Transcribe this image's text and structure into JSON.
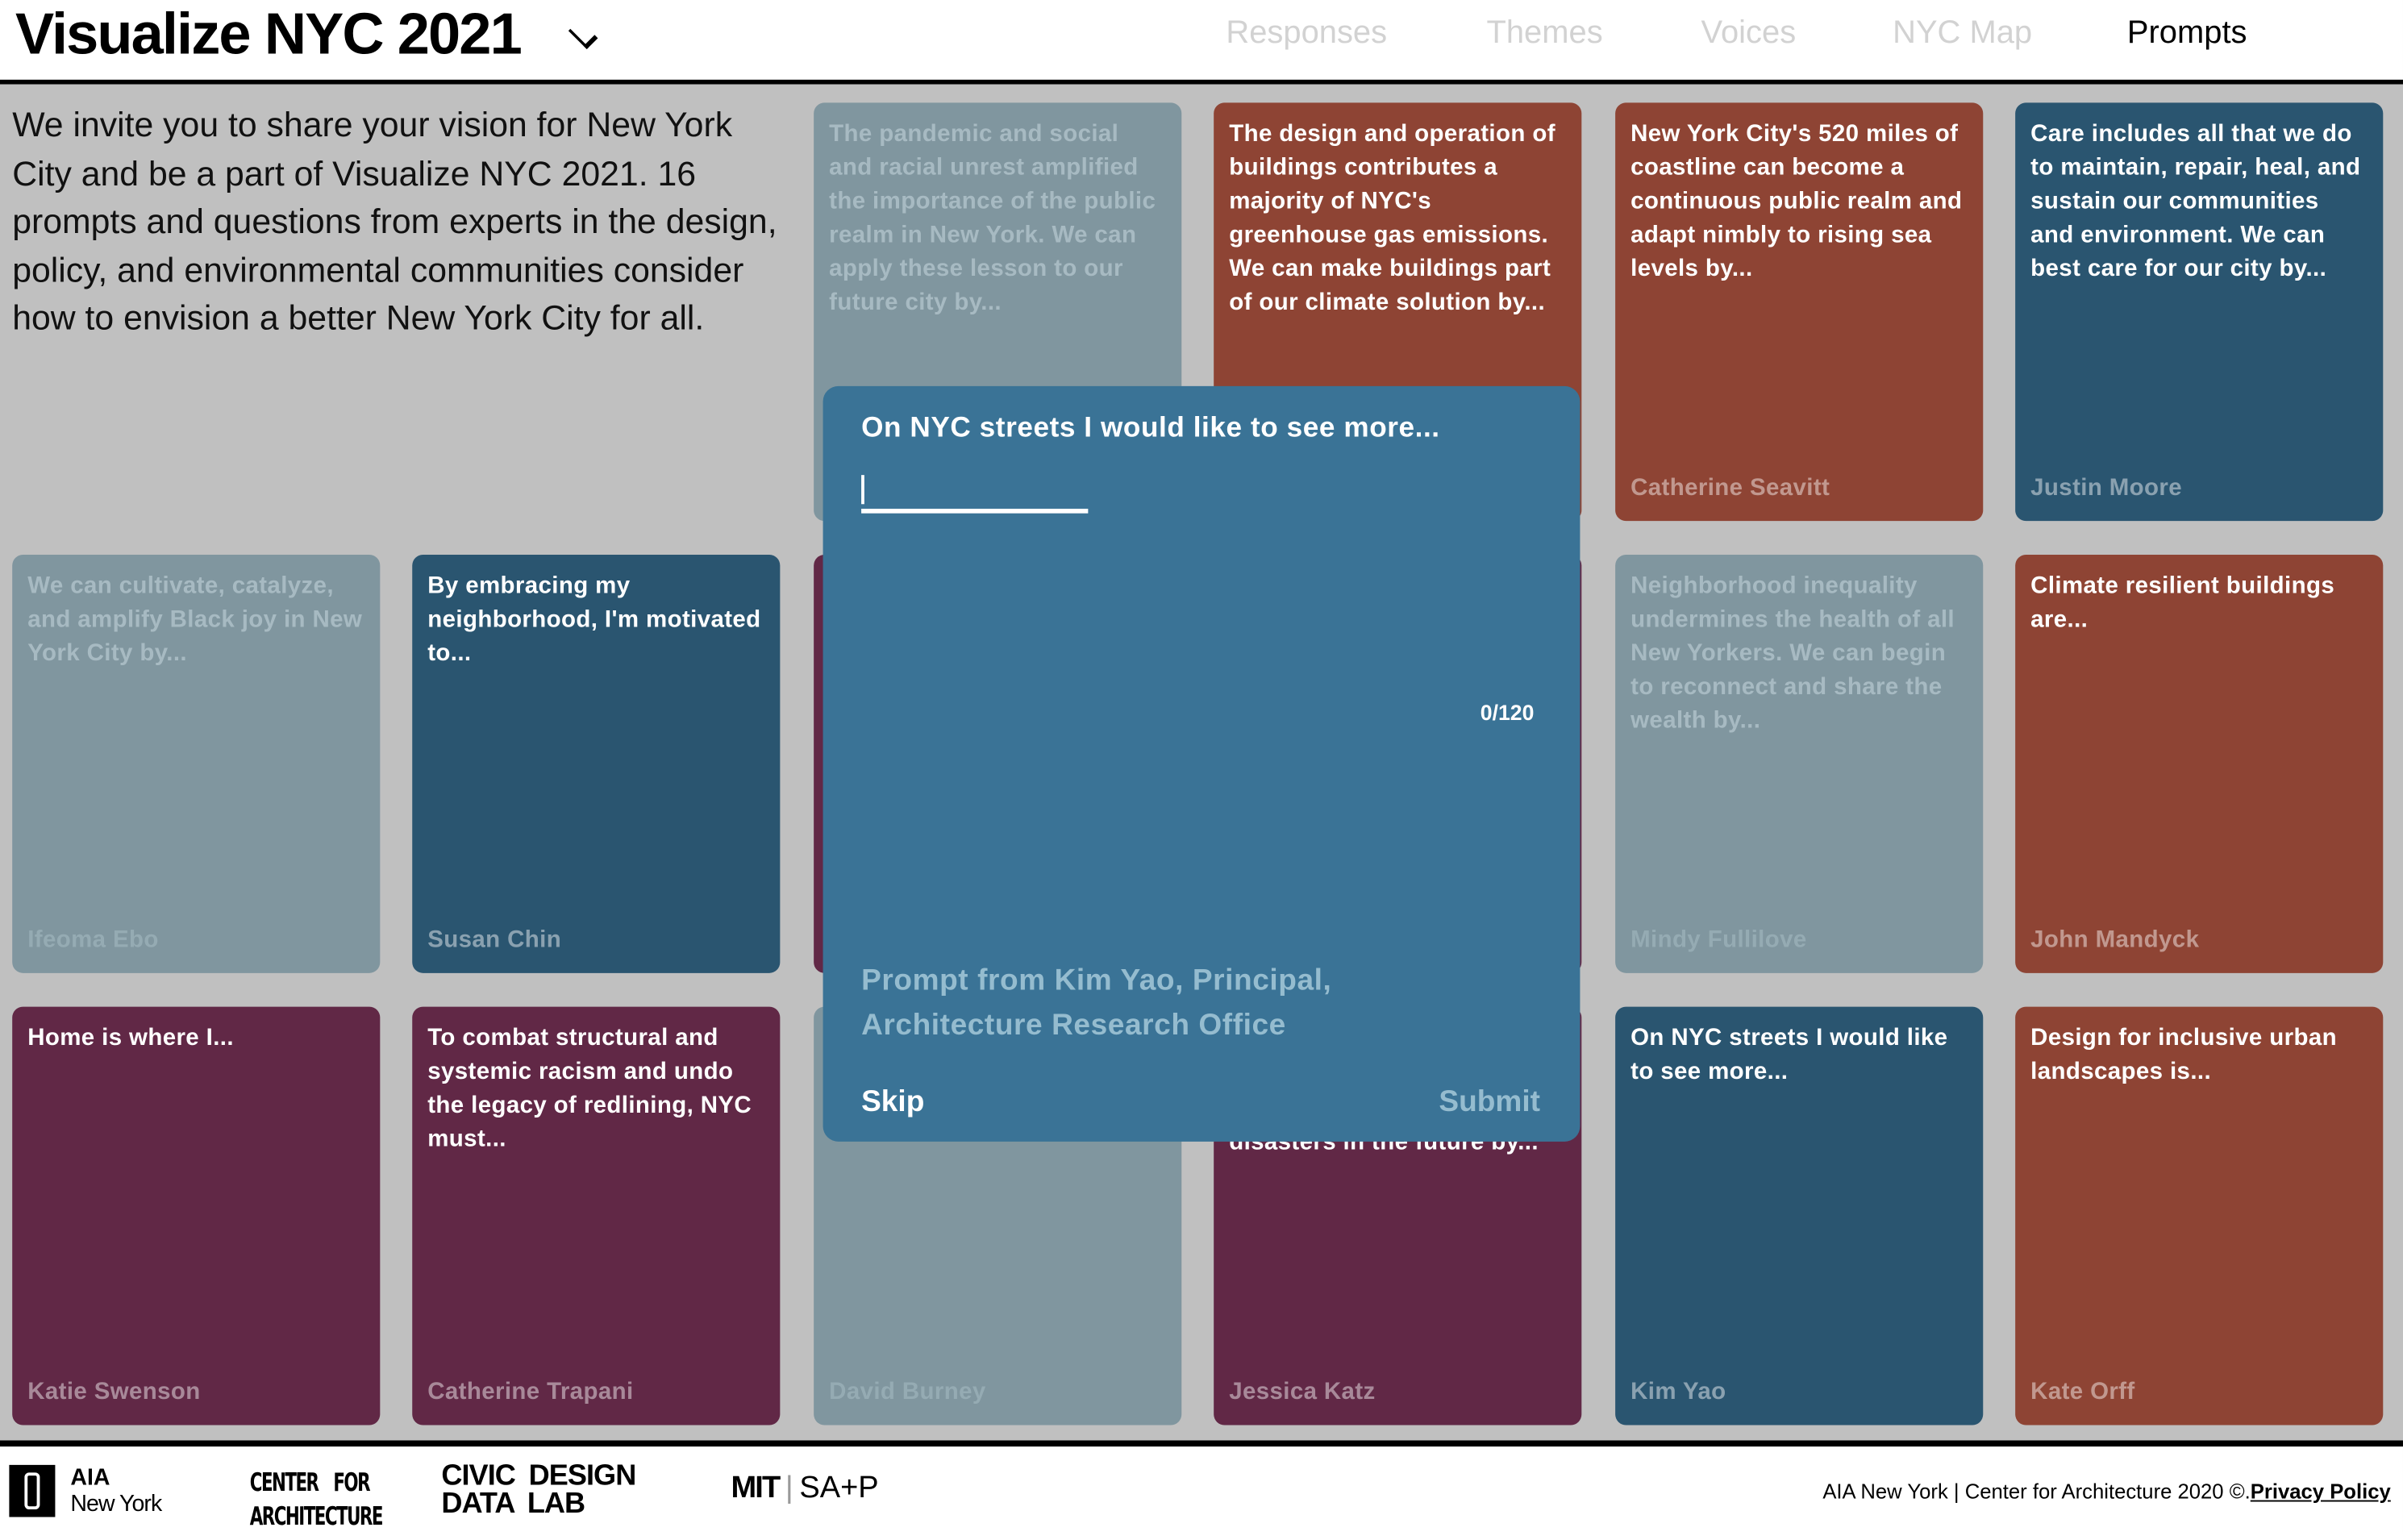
{
  "header": {
    "title": "Visualize NYC 2021",
    "nav": [
      "Responses",
      "Themes",
      "Voices",
      "NYC Map",
      "Prompts"
    ],
    "active_nav": "Prompts"
  },
  "intro": "We invite you to share your vision for New York City and be a part of Visualize NYC 2021. 16 prompts and questions from experts in the design, policy, and environmental communities consider how to envision a better New York City for all.",
  "cards": [
    {
      "text": "The pandemic and social and racial unrest amplified the importance of the public realm in New York. We can apply these lesson to our future city by...",
      "author": ""
    },
    {
      "text": "The design and operation of buildings contributes a majority of NYC's greenhouse gas emissions. We can make buildings part of our climate solution by...",
      "author": ""
    },
    {
      "text": "New York City's 520 miles of coastline can become a continuous public realm and adapt nimbly to rising sea levels by...",
      "author": "Catherine Seavitt"
    },
    {
      "text": "Care includes all that we do to maintain, repair, heal, and sustain our communities and environment. We can best care for our city by...",
      "author": "Justin Moore"
    },
    {
      "text": "We can cultivate, catalyze, and amplify Black joy in New York City by...",
      "author": "Ifeoma Ebo"
    },
    {
      "text": "By embracing my neighborhood, I'm motivated to...",
      "author": "Susan Chin"
    },
    {
      "text": "",
      "author": ""
    },
    {
      "text": "",
      "author": ""
    },
    {
      "text": "Neighborhood inequality undermines the health of all New Yorkers. We can begin to reconnect and share the wealth by...",
      "author": "Mindy Fullilove"
    },
    {
      "text": "Climate resilient buildings are...",
      "author": "John Mandyck"
    },
    {
      "text": "Home is where I...",
      "author": "Katie Swenson"
    },
    {
      "text": "To combat structural and systemic racism and undo the legacy of redlining, NYC must...",
      "author": "Catherine Trapani"
    },
    {
      "text": "",
      "author": "David Burney"
    },
    {
      "text": "disasters in the future by...",
      "author": "Jessica Katz"
    },
    {
      "text": "On NYC streets I would like to see more...",
      "author": "Kim Yao"
    },
    {
      "text": "Design for inclusive urban landscapes is...",
      "author": "Kate Orff"
    }
  ],
  "modal": {
    "prompt": "On NYC streets I would like to see more...",
    "input_value": "",
    "counter": "0/120",
    "credit": "Prompt from Kim Yao, Principal, Architecture Research Office",
    "skip": "Skip",
    "submit": "Submit"
  },
  "footer": {
    "logos": {
      "aia_1": "AIA",
      "aia_2": "New York",
      "cfa_1": "CENTER FOR",
      "cfa_2": "ARCHITECTURE",
      "cddl_1": "CIVIC DESIGN",
      "cddl_2": "DATA LAB",
      "mit_1": "MIT",
      "mit_2": "SA+P"
    },
    "copyright": "AIA New York | Center for Architecture 2020 ©.",
    "privacy": "Privacy Policy"
  },
  "colors": {
    "gray": "#80969f",
    "red": "#8e4434",
    "blue": "#2a5570",
    "purple": "#612846",
    "modal": "#3a7396",
    "background": "#c0c0c0"
  }
}
